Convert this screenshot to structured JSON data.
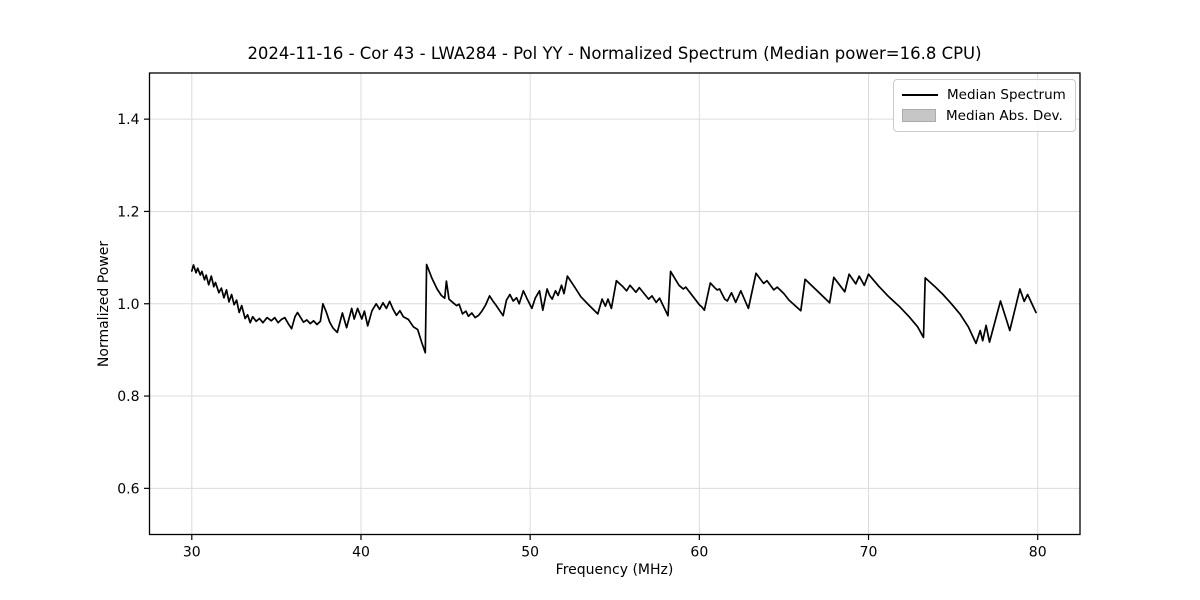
{
  "chart_data": {
    "type": "line",
    "title": "2024-11-16 - Cor 43 - LWA284 - Pol YY - Normalized Spectrum (Median power=16.8 CPU)",
    "xlabel": "Frequency (MHz)",
    "ylabel": "Normalized Power",
    "xlim": [
      27.5,
      82.5
    ],
    "ylim": [
      0.5,
      1.5
    ],
    "xticks": [
      30,
      40,
      50,
      60,
      70,
      80
    ],
    "yticks": [
      0.6,
      0.8,
      1.0,
      1.2,
      1.4
    ],
    "grid": true,
    "grid_color": "#dcdcdc",
    "frame_color": "#000000",
    "legend": {
      "position": "upper right",
      "entries": [
        {
          "label": "Median Spectrum",
          "swatch": "line",
          "color": "#000000"
        },
        {
          "label": "Median Abs. Dev.",
          "swatch": "patch",
          "color": "#c6c6c6"
        }
      ]
    },
    "series": [
      {
        "name": "Median Spectrum",
        "type": "line",
        "color": "#000000",
        "line_width": 1.7,
        "points": [
          [
            30.0,
            1.071
          ],
          [
            30.1,
            1.084
          ],
          [
            30.25,
            1.067
          ],
          [
            30.35,
            1.077
          ],
          [
            30.5,
            1.062
          ],
          [
            30.6,
            1.07
          ],
          [
            30.75,
            1.052
          ],
          [
            30.85,
            1.062
          ],
          [
            31.0,
            1.041
          ],
          [
            31.15,
            1.06
          ],
          [
            31.3,
            1.037
          ],
          [
            31.4,
            1.046
          ],
          [
            31.6,
            1.024
          ],
          [
            31.75,
            1.034
          ],
          [
            31.9,
            1.013
          ],
          [
            32.05,
            1.03
          ],
          [
            32.2,
            1.004
          ],
          [
            32.35,
            1.02
          ],
          [
            32.5,
            0.998
          ],
          [
            32.65,
            1.008
          ],
          [
            32.8,
            0.981
          ],
          [
            32.95,
            0.996
          ],
          [
            33.15,
            0.968
          ],
          [
            33.3,
            0.976
          ],
          [
            33.45,
            0.959
          ],
          [
            33.6,
            0.972
          ],
          [
            33.8,
            0.962
          ],
          [
            34.0,
            0.968
          ],
          [
            34.2,
            0.959
          ],
          [
            34.45,
            0.97
          ],
          [
            34.7,
            0.963
          ],
          [
            34.9,
            0.97
          ],
          [
            35.1,
            0.959
          ],
          [
            35.3,
            0.966
          ],
          [
            35.5,
            0.97
          ],
          [
            35.7,
            0.957
          ],
          [
            35.9,
            0.946
          ],
          [
            36.1,
            0.972
          ],
          [
            36.25,
            0.981
          ],
          [
            36.4,
            0.972
          ],
          [
            36.6,
            0.96
          ],
          [
            36.8,
            0.965
          ],
          [
            37.0,
            0.957
          ],
          [
            37.2,
            0.963
          ],
          [
            37.4,
            0.955
          ],
          [
            37.6,
            0.962
          ],
          [
            37.75,
            1.0
          ],
          [
            37.95,
            0.982
          ],
          [
            38.15,
            0.96
          ],
          [
            38.35,
            0.947
          ],
          [
            38.6,
            0.938
          ],
          [
            38.9,
            0.98
          ],
          [
            39.15,
            0.948
          ],
          [
            39.45,
            0.99
          ],
          [
            39.6,
            0.967
          ],
          [
            39.8,
            0.99
          ],
          [
            40.05,
            0.967
          ],
          [
            40.2,
            0.984
          ],
          [
            40.4,
            0.952
          ],
          [
            40.65,
            0.985
          ],
          [
            40.9,
            1.0
          ],
          [
            41.1,
            0.988
          ],
          [
            41.3,
            1.002
          ],
          [
            41.5,
            0.99
          ],
          [
            41.7,
            1.005
          ],
          [
            41.9,
            0.988
          ],
          [
            42.1,
            0.975
          ],
          [
            42.3,
            0.985
          ],
          [
            42.5,
            0.972
          ],
          [
            42.8,
            0.966
          ],
          [
            43.1,
            0.95
          ],
          [
            43.35,
            0.944
          ],
          [
            43.6,
            0.915
          ],
          [
            43.8,
            0.894
          ],
          [
            43.88,
            1.085
          ],
          [
            44.2,
            1.055
          ],
          [
            44.5,
            1.032
          ],
          [
            44.75,
            1.018
          ],
          [
            44.95,
            1.012
          ],
          [
            45.05,
            1.049
          ],
          [
            45.2,
            1.01
          ],
          [
            45.45,
            1.002
          ],
          [
            45.65,
            0.996
          ],
          [
            45.8,
            0.999
          ],
          [
            46.0,
            0.978
          ],
          [
            46.2,
            0.984
          ],
          [
            46.35,
            0.973
          ],
          [
            46.55,
            0.98
          ],
          [
            46.75,
            0.97
          ],
          [
            46.95,
            0.975
          ],
          [
            47.15,
            0.984
          ],
          [
            47.35,
            0.996
          ],
          [
            47.6,
            1.017
          ],
          [
            47.8,
            1.006
          ],
          [
            48.0,
            0.996
          ],
          [
            48.2,
            0.985
          ],
          [
            48.4,
            0.974
          ],
          [
            48.6,
            1.008
          ],
          [
            48.8,
            1.02
          ],
          [
            49.0,
            1.006
          ],
          [
            49.2,
            1.013
          ],
          [
            49.35,
            1.0
          ],
          [
            49.6,
            1.028
          ],
          [
            49.8,
            1.012
          ],
          [
            50.1,
            0.99
          ],
          [
            50.3,
            1.012
          ],
          [
            50.55,
            1.028
          ],
          [
            50.75,
            0.986
          ],
          [
            51.0,
            1.032
          ],
          [
            51.15,
            1.018
          ],
          [
            51.3,
            1.01
          ],
          [
            51.5,
            1.028
          ],
          [
            51.65,
            1.018
          ],
          [
            51.85,
            1.04
          ],
          [
            52.0,
            1.022
          ],
          [
            52.2,
            1.06
          ],
          [
            52.6,
            1.038
          ],
          [
            53.0,
            1.015
          ],
          [
            53.5,
            0.996
          ],
          [
            54.0,
            0.978
          ],
          [
            54.25,
            1.01
          ],
          [
            54.45,
            0.995
          ],
          [
            54.6,
            1.01
          ],
          [
            54.8,
            0.99
          ],
          [
            55.1,
            1.05
          ],
          [
            55.45,
            1.038
          ],
          [
            55.7,
            1.028
          ],
          [
            55.9,
            1.04
          ],
          [
            56.25,
            1.025
          ],
          [
            56.45,
            1.035
          ],
          [
            57.0,
            1.01
          ],
          [
            57.2,
            1.017
          ],
          [
            57.45,
            1.003
          ],
          [
            57.65,
            1.012
          ],
          [
            58.15,
            0.974
          ],
          [
            58.3,
            1.07
          ],
          [
            58.8,
            1.04
          ],
          [
            59.05,
            1.032
          ],
          [
            59.2,
            1.036
          ],
          [
            60.0,
            0.998
          ],
          [
            60.15,
            0.993
          ],
          [
            60.3,
            0.986
          ],
          [
            60.65,
            1.045
          ],
          [
            60.9,
            1.035
          ],
          [
            61.05,
            1.03
          ],
          [
            61.2,
            1.032
          ],
          [
            61.5,
            1.01
          ],
          [
            61.65,
            1.006
          ],
          [
            61.9,
            1.024
          ],
          [
            62.15,
            1.003
          ],
          [
            62.45,
            1.028
          ],
          [
            62.9,
            0.99
          ],
          [
            63.35,
            1.066
          ],
          [
            63.8,
            1.044
          ],
          [
            64.0,
            1.05
          ],
          [
            64.4,
            1.03
          ],
          [
            64.6,
            1.036
          ],
          [
            65.0,
            1.022
          ],
          [
            65.3,
            1.008
          ],
          [
            66.0,
            0.985
          ],
          [
            66.25,
            1.053
          ],
          [
            67.7,
            1.002
          ],
          [
            67.95,
            1.057
          ],
          [
            68.6,
            1.026
          ],
          [
            68.85,
            1.064
          ],
          [
            69.25,
            1.043
          ],
          [
            69.45,
            1.06
          ],
          [
            69.75,
            1.04
          ],
          [
            70.0,
            1.064
          ],
          [
            70.6,
            1.038
          ],
          [
            71.2,
            1.015
          ],
          [
            71.8,
            0.995
          ],
          [
            72.4,
            0.972
          ],
          [
            72.9,
            0.95
          ],
          [
            73.25,
            0.927
          ],
          [
            73.35,
            1.056
          ],
          [
            73.9,
            1.038
          ],
          [
            74.4,
            1.02
          ],
          [
            74.9,
            1.0
          ],
          [
            75.4,
            0.978
          ],
          [
            75.9,
            0.95
          ],
          [
            76.35,
            0.914
          ],
          [
            76.6,
            0.942
          ],
          [
            76.75,
            0.92
          ],
          [
            76.95,
            0.953
          ],
          [
            77.15,
            0.917
          ],
          [
            77.8,
            1.006
          ],
          [
            78.35,
            0.942
          ],
          [
            78.95,
            1.032
          ],
          [
            79.2,
            1.005
          ],
          [
            79.4,
            1.02
          ],
          [
            79.9,
            0.981
          ]
        ]
      },
      {
        "name": "Median Abs. Dev.",
        "type": "band",
        "color": "#c6c6c6",
        "halfwidth": 0.002,
        "derived_from": "Median Spectrum"
      }
    ]
  }
}
